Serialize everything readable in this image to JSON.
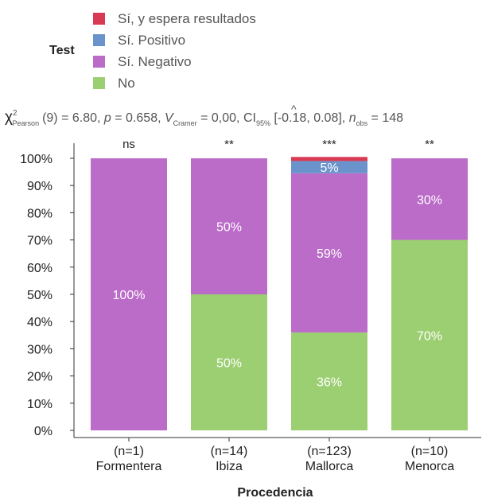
{
  "chart_data": {
    "type": "bar",
    "stacked": true,
    "percent": true,
    "categories": [
      "(n=1)\nFormentera",
      "(n=14)\nIbiza",
      "(n=123)\nMallorca",
      "(n=10)\nMenorca"
    ],
    "category_counts": [
      "(n=1)",
      "(n=14)",
      "(n=123)",
      "(n=10)"
    ],
    "category_names": [
      "Formentera",
      "Ibiza",
      "Mallorca",
      "Menorca"
    ],
    "significance": [
      "ns",
      "**",
      "***",
      "**"
    ],
    "series": [
      {
        "name": "No",
        "color": "#9ccf72",
        "values": [
          0,
          50,
          36,
          70
        ],
        "labels": [
          "",
          "50%",
          "36%",
          "70%"
        ]
      },
      {
        "name": "Sí. Negativo",
        "color": "#bb6bc8",
        "values": [
          100,
          50,
          58.5,
          30
        ],
        "labels": [
          "100%",
          "50%",
          "59%",
          "30%"
        ]
      },
      {
        "name": "Sí. Positivo",
        "color": "#6a93cc",
        "values": [
          0,
          0,
          4.5,
          0
        ],
        "labels": [
          "",
          "",
          "5%",
          ""
        ]
      },
      {
        "name": "Sí, y espera resultados",
        "color": "#d93a53",
        "values": [
          0,
          0,
          1.5,
          0
        ],
        "labels": [
          "",
          "",
          "",
          ""
        ]
      }
    ],
    "legend": {
      "title": "Test",
      "position": "top-left",
      "items": [
        {
          "name": "Sí, y espera resultados",
          "color": "#d93a53"
        },
        {
          "name": "Sí. Positivo",
          "color": "#6a93cc"
        },
        {
          "name": "Sí. Negativo",
          "color": "#bb6bc8"
        },
        {
          "name": "No",
          "color": "#9ccf72"
        }
      ]
    },
    "subtitle": {
      "chi": "χ",
      "chi_sup": "2",
      "chi_sub": "Pearson",
      "df": "(9) = 6.80, ",
      "p_sym": "p",
      "p_val": " = 0.658, ",
      "v_sym": "V",
      "v_hat": "^",
      "v_sub": "Cramer",
      "v_val": " = 0,00, CI",
      "ci_sub": "95%",
      "ci_val": " [-0.18, 0.08], ",
      "n_sym": "n",
      "n_sub": "obs",
      "n_val": " = 148"
    },
    "xlabel": "Procedencia",
    "ylabel": "",
    "ylim": [
      0,
      100
    ],
    "yticks": [
      "0%",
      "10%",
      "20%",
      "30%",
      "40%",
      "50%",
      "60%",
      "70%",
      "80%",
      "90%",
      "100%"
    ],
    "grid": false
  }
}
